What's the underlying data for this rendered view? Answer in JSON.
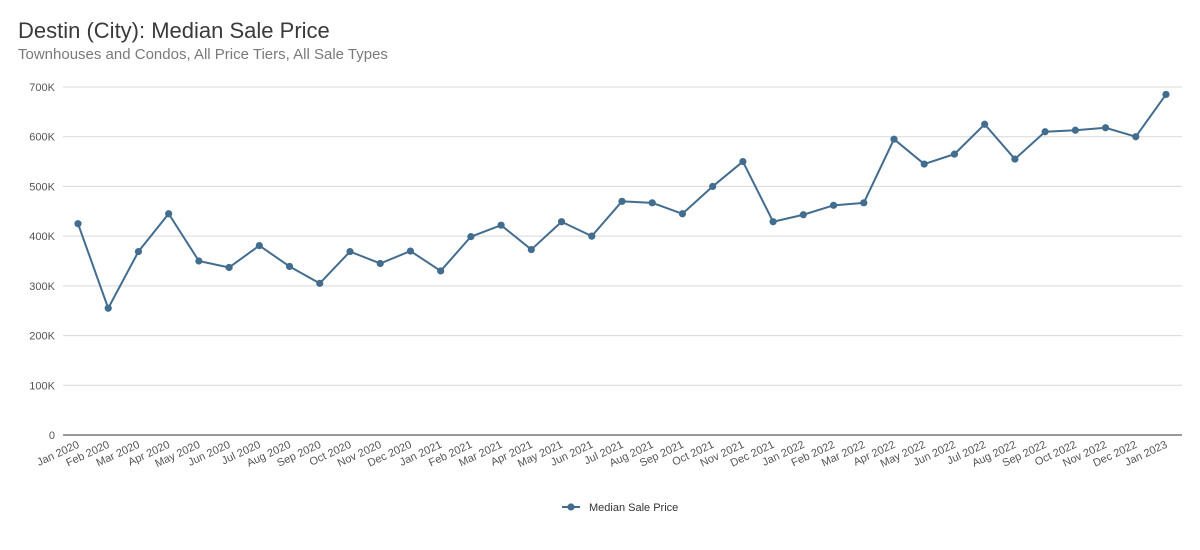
{
  "chart_data": {
    "type": "line",
    "title": "Destin (City): Median Sale Price",
    "subtitle": "Townhouses and Condos, All Price Tiers, All Sale Types",
    "xlabel": "",
    "ylabel": "",
    "ylim": [
      0,
      700000
    ],
    "y_ticks": [
      0,
      100000,
      200000,
      300000,
      400000,
      500000,
      600000,
      700000
    ],
    "y_tick_labels": [
      "0",
      "100K",
      "200K",
      "300K",
      "400K",
      "500K",
      "600K",
      "700K"
    ],
    "grid": true,
    "legend_position": "bottom-center",
    "color": "#436d8f",
    "categories": [
      "Jan 2020",
      "Feb 2020",
      "Mar 2020",
      "Apr 2020",
      "May 2020",
      "Jun 2020",
      "Jul 2020",
      "Aug 2020",
      "Sep 2020",
      "Oct 2020",
      "Nov 2020",
      "Dec 2020",
      "Jan 2021",
      "Feb 2021",
      "Mar 2021",
      "Apr 2021",
      "May 2021",
      "Jun 2021",
      "Jul 2021",
      "Aug 2021",
      "Sep 2021",
      "Oct 2021",
      "Nov 2021",
      "Dec 2021",
      "Jan 2022",
      "Feb 2022",
      "Mar 2022",
      "Apr 2022",
      "May 2022",
      "Jun 2022",
      "Jul 2022",
      "Aug 2022",
      "Sep 2022",
      "Oct 2022",
      "Nov 2022",
      "Dec 2022",
      "Jan 2023"
    ],
    "series": [
      {
        "name": "Median Sale Price",
        "values": [
          425000,
          255000,
          369000,
          445000,
          350000,
          337000,
          381000,
          339000,
          305000,
          369000,
          345000,
          370000,
          330000,
          399000,
          422000,
          373000,
          429000,
          400000,
          470000,
          467000,
          445000,
          500000,
          550000,
          429000,
          443000,
          462000,
          467000,
          595000,
          545000,
          565000,
          625000,
          555000,
          610000,
          613000,
          618000,
          600000,
          685000
        ]
      }
    ]
  }
}
